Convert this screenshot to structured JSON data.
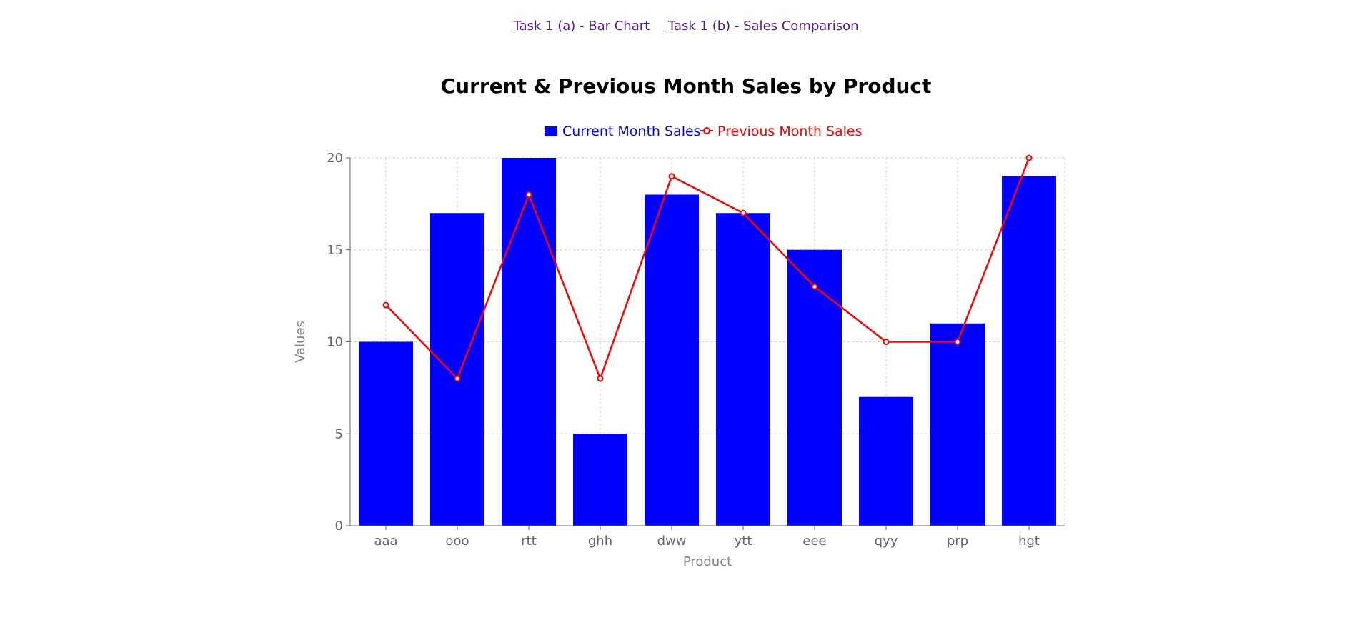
{
  "nav": {
    "links": [
      {
        "label": "Task 1 (a) - Bar Chart"
      },
      {
        "label": "Task 1 (b) - Sales Comparison"
      }
    ]
  },
  "chart_data": {
    "type": "bar",
    "title": "Current & Previous Month Sales by Product",
    "xlabel": "Product",
    "ylabel": "Values",
    "ylim": [
      0,
      20
    ],
    "yticks": [
      0,
      5,
      10,
      15,
      20
    ],
    "grid": true,
    "legend": "top-center",
    "categories": [
      "aaa",
      "ooo",
      "rtt",
      "ghh",
      "dww",
      "ytt",
      "eee",
      "qyy",
      "prp",
      "hgt"
    ],
    "series": [
      {
        "name": "Current Month Sales",
        "type": "bar",
        "color": "#0000ff",
        "values": [
          10,
          17,
          20,
          5,
          18,
          17,
          15,
          7,
          11,
          19
        ]
      },
      {
        "name": "Previous Month Sales",
        "type": "line",
        "color": "#ff0000",
        "values": [
          12,
          8,
          18,
          8,
          19,
          17,
          13,
          10,
          10,
          20
        ]
      }
    ]
  }
}
